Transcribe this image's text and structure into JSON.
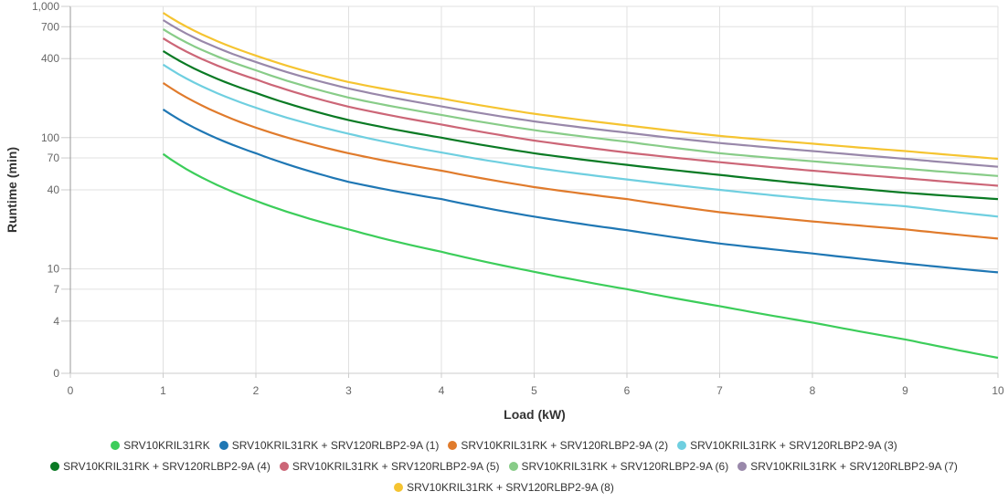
{
  "chart_data": {
    "type": "line",
    "title": "",
    "xlabel": "Load (kW)",
    "ylabel": "Runtime (min)",
    "xlim": [
      0,
      10
    ],
    "x_ticks": [
      "0",
      "1",
      "2",
      "3",
      "4",
      "5",
      "6",
      "7",
      "8",
      "9",
      "10"
    ],
    "y_scale": "log",
    "ylim": [
      1.6,
      1000
    ],
    "y_ticks": [
      {
        "value": 1000,
        "label": "1,000"
      },
      {
        "value": 700,
        "label": "700"
      },
      {
        "value": 400,
        "label": "400"
      },
      {
        "value": 100,
        "label": "100"
      },
      {
        "value": 70,
        "label": "70"
      },
      {
        "value": 40,
        "label": "40"
      },
      {
        "value": 10,
        "label": "10"
      },
      {
        "value": 7,
        "label": "7"
      },
      {
        "value": 4,
        "label": "4"
      },
      {
        "value": 1.6,
        "label": "0"
      }
    ],
    "grid": true,
    "legend_position": "bottom",
    "x": [
      1,
      2,
      3,
      4,
      5,
      6,
      7,
      8,
      9,
      10
    ],
    "series": [
      {
        "name": "SRV10KRIL31RK",
        "color": "#3ccd5a",
        "values": [
          75,
          33,
          20,
          13.5,
          9.5,
          7.0,
          5.2,
          3.9,
          2.9,
          2.1
        ]
      },
      {
        "name": "SRV10KRIL31RK + SRV120RLBP2-9A (1)",
        "color": "#1f77b4",
        "values": [
          164,
          76,
          46,
          34,
          25,
          19.7,
          15.6,
          13.1,
          11.0,
          9.4
        ]
      },
      {
        "name": "SRV10KRIL31RK + SRV120RLBP2-9A (2)",
        "color": "#e07b2c",
        "values": [
          261,
          119,
          76,
          56,
          42,
          34,
          27,
          23,
          20,
          17
        ]
      },
      {
        "name": "SRV10KRIL31RK + SRV120RLBP2-9A (3)",
        "color": "#6fcfe0",
        "values": [
          360,
          169,
          107,
          77,
          59,
          48,
          40,
          34,
          30,
          25
        ]
      },
      {
        "name": "SRV10KRIL31RK + SRV120RLBP2-9A (4)",
        "color": "#0a7a24",
        "values": [
          457,
          219,
          136,
          100,
          76,
          62,
          52,
          44,
          38,
          34
        ]
      },
      {
        "name": "SRV10KRIL31RK + SRV120RLBP2-9A (5)",
        "color": "#cc6677",
        "values": [
          571,
          278,
          172,
          126,
          95,
          77,
          65,
          56,
          49,
          43
        ]
      },
      {
        "name": "SRV10KRIL31RK + SRV120RLBP2-9A (6)",
        "color": "#88cc88",
        "values": [
          670,
          326,
          202,
          149,
          114,
          93,
          76,
          66,
          58,
          51
        ]
      },
      {
        "name": "SRV10KRIL31RK + SRV120RLBP2-9A (7)",
        "color": "#9988aa",
        "values": [
          787,
          377,
          237,
          173,
          133,
          109,
          91,
          79,
          69,
          60
        ]
      },
      {
        "name": "SRV10KRIL31RK + SRV120RLBP2-9A (8)",
        "color": "#f5c431",
        "values": [
          893,
          422,
          265,
          199,
          152,
          124,
          103,
          90,
          79,
          69
        ]
      }
    ]
  },
  "legend_rows": [
    [
      0,
      1,
      2,
      3
    ],
    [
      4,
      5,
      6,
      7
    ],
    [
      8
    ]
  ]
}
